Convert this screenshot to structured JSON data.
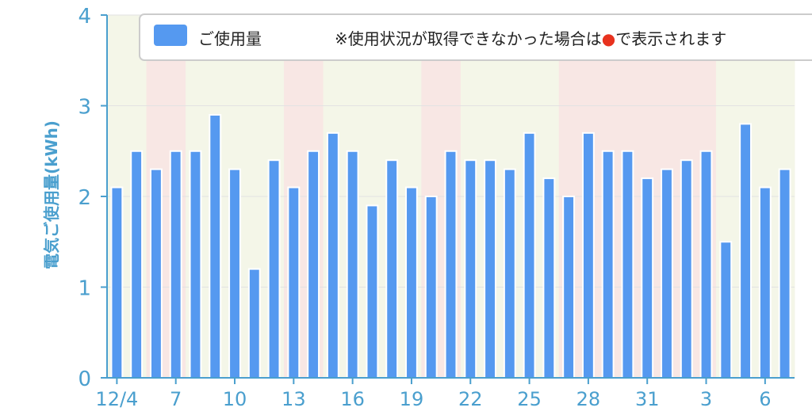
{
  "chart_data": {
    "type": "bar",
    "ylabel": "電気ご使用量(kWh)",
    "ylim": [
      0,
      4
    ],
    "yticks": [
      "0",
      "1",
      "2",
      "3",
      "4"
    ],
    "x_tick_labels": [
      "12/4",
      "7",
      "10",
      "13",
      "16",
      "19",
      "22",
      "25",
      "28",
      "31",
      "3",
      "6"
    ],
    "x_tick_every": 3,
    "series": [
      {
        "name": "ご使用量",
        "values": [
          2.1,
          2.5,
          2.3,
          2.5,
          2.5,
          2.9,
          2.3,
          1.2,
          2.4,
          2.1,
          2.5,
          2.7,
          2.5,
          1.9,
          2.4,
          2.1,
          2.0,
          2.5,
          2.4,
          2.4,
          2.3,
          2.7,
          2.2,
          2.0,
          2.7,
          2.5,
          2.5,
          2.2,
          2.3,
          2.4,
          2.5,
          1.5,
          2.8,
          2.1,
          2.3
        ]
      }
    ],
    "day_background": [
      "weekday",
      "weekday",
      "holiday",
      "holiday",
      "weekday",
      "weekday",
      "weekday",
      "weekday",
      "weekday",
      "holiday",
      "holiday",
      "weekday",
      "weekday",
      "weekday",
      "weekday",
      "weekday",
      "holiday",
      "holiday",
      "weekday",
      "weekday",
      "weekday",
      "weekday",
      "weekday",
      "holiday",
      "holiday",
      "holiday",
      "holiday",
      "holiday",
      "holiday",
      "holiday",
      "holiday",
      "weekday",
      "weekday",
      "weekday",
      "weekday"
    ],
    "legend": {
      "label": "ご使用量",
      "note_prefix": "※使用状況が取得できなかった場合は",
      "note_marker": "●",
      "note_suffix": "で表示されます",
      "placement": "top"
    },
    "grid": true
  },
  "colors": {
    "bar": "#5599f0",
    "bar_stroke": "#ffffff",
    "weekday_bg": "#f4f6e8",
    "holiday_bg": "#f8e7e4",
    "axis": "#4a9fce",
    "grid": "#e2e2e2",
    "legend_text": "#222222",
    "marker": "#e8321e"
  }
}
